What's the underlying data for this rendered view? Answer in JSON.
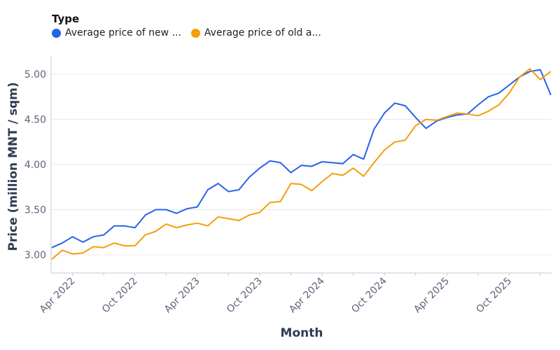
{
  "chart_data": {
    "type": "line",
    "xlabel": "Month",
    "ylabel": "Price (million MNT / sqm)",
    "legend_title": "Type",
    "legend_position": "top-left",
    "grid": true,
    "ylim": [
      2.8,
      5.2
    ],
    "y_ticks": [
      3.0,
      3.5,
      4.0,
      4.5,
      5.0
    ],
    "y_tick_labels": [
      "3.00",
      "3.50",
      "4.00",
      "4.50",
      "5.00"
    ],
    "x_tick_labels": [
      "Apr 2022",
      "Oct 2022",
      "Apr 2023",
      "Oct 2023",
      "Apr 2024",
      "Oct 2024",
      "Apr 2025",
      "Oct 2025"
    ],
    "x": [
      "2022-02",
      "2022-03",
      "2022-04",
      "2022-05",
      "2022-06",
      "2022-07",
      "2022-08",
      "2022-09",
      "2022-10",
      "2022-11",
      "2022-12",
      "2023-01",
      "2023-02",
      "2023-03",
      "2023-04",
      "2023-05",
      "2023-06",
      "2023-07",
      "2023-08",
      "2023-09",
      "2023-10",
      "2023-11",
      "2023-12",
      "2024-01",
      "2024-02",
      "2024-03",
      "2024-04",
      "2024-05",
      "2024-06",
      "2024-07",
      "2024-08",
      "2024-09",
      "2024-10",
      "2024-11",
      "2024-12",
      "2025-01",
      "2025-02",
      "2025-03",
      "2025-04",
      "2025-05",
      "2025-06",
      "2025-07",
      "2025-08",
      "2025-09",
      "2025-10",
      "2025-11",
      "2025-12",
      "2026-01",
      "2026-02"
    ],
    "series": [
      {
        "name": "Average price of new ...",
        "color": "#2563eb",
        "values": [
          3.08,
          3.13,
          3.2,
          3.14,
          3.2,
          3.22,
          3.32,
          3.32,
          3.3,
          3.44,
          3.5,
          3.5,
          3.46,
          3.51,
          3.53,
          3.72,
          3.79,
          3.7,
          3.72,
          3.86,
          3.96,
          4.04,
          4.02,
          3.91,
          3.99,
          3.98,
          4.03,
          4.02,
          4.01,
          4.11,
          4.06,
          4.39,
          4.57,
          4.68,
          4.65,
          4.52,
          4.4,
          4.48,
          4.52,
          4.55,
          4.56,
          4.66,
          4.75,
          4.79,
          4.88,
          4.97,
          5.03,
          5.05,
          4.77
        ]
      },
      {
        "name": "Average price of old a...",
        "color": "#f59e0b",
        "values": [
          2.95,
          3.05,
          3.01,
          3.02,
          3.09,
          3.08,
          3.13,
          3.1,
          3.1,
          3.22,
          3.26,
          3.34,
          3.3,
          3.33,
          3.35,
          3.32,
          3.42,
          3.4,
          3.38,
          3.44,
          3.47,
          3.58,
          3.59,
          3.79,
          3.78,
          3.71,
          3.81,
          3.9,
          3.88,
          3.96,
          3.87,
          4.02,
          4.16,
          4.25,
          4.27,
          4.43,
          4.5,
          4.49,
          4.53,
          4.57,
          4.56,
          4.54,
          4.59,
          4.66,
          4.79,
          4.97,
          5.06,
          4.94,
          5.03
        ]
      }
    ]
  }
}
